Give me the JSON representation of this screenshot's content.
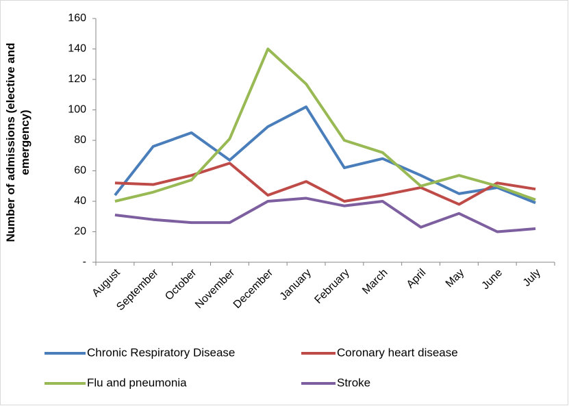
{
  "chart_data": {
    "type": "line",
    "y_label": "Number of admissions (elective and emergency)",
    "categories": [
      "August",
      "September",
      "October",
      "November",
      "December",
      "January",
      "February",
      "March",
      "April",
      "May",
      "June",
      "July"
    ],
    "series": [
      {
        "name": "Chronic Respiratory Disease",
        "color": "#4a7ebb",
        "values": [
          44,
          76,
          85,
          67,
          89,
          102,
          62,
          68,
          57,
          45,
          49,
          39
        ]
      },
      {
        "name": "Coronary heart disease",
        "color": "#be4b48",
        "values": [
          52,
          51,
          57,
          65,
          44,
          53,
          40,
          44,
          49,
          38,
          52,
          48
        ]
      },
      {
        "name": "Flu and pneumonia",
        "color": "#98b954",
        "values": [
          40,
          46,
          54,
          81,
          140,
          117,
          80,
          72,
          50,
          57,
          50,
          41
        ]
      },
      {
        "name": "Stroke",
        "color": "#7d5fa0",
        "values": [
          31,
          28,
          26,
          26,
          40,
          42,
          37,
          40,
          23,
          32,
          20,
          22
        ]
      }
    ],
    "ylim": [
      0,
      160
    ],
    "yticks": [
      {
        "value": 0,
        "label": "-"
      },
      20,
      40,
      60,
      80,
      100,
      120,
      140,
      160
    ],
    "grid": false
  }
}
